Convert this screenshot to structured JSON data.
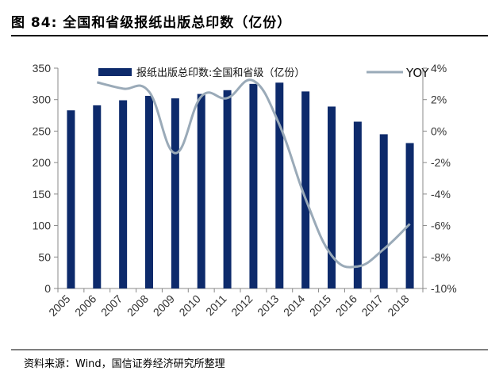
{
  "header": {
    "title": "图 84:  全国和省级报纸出版总印数（亿份）"
  },
  "footer": {
    "source": "资料来源：Wind，国信证券经济研究所整理"
  },
  "chart_data": {
    "type": "bar",
    "categories": [
      "2005",
      "2006",
      "2007",
      "2008",
      "2009",
      "2010",
      "2011",
      "2012",
      "2013",
      "2014",
      "2015",
      "2016",
      "2017",
      "2018"
    ],
    "series": [
      {
        "name": "报纸出版总印数:全国和省级（亿份）",
        "type": "bar",
        "axis": "left",
        "color": "#0d2a6b",
        "values": [
          283,
          291,
          299,
          306,
          302,
          309,
          315,
          325,
          327,
          313,
          289,
          265,
          245,
          231
        ]
      },
      {
        "name": "YOY",
        "type": "line",
        "axis": "right",
        "color": "#9aaab8",
        "values": [
          null,
          3.1,
          2.7,
          2.5,
          -1.4,
          2.2,
          2.1,
          3.2,
          0.4,
          -4.3,
          -7.9,
          -8.6,
          -7.5,
          -5.9
        ]
      }
    ],
    "y_left": {
      "min": 0,
      "max": 350,
      "step": 50,
      "ticks": [
        "0",
        "50",
        "100",
        "150",
        "200",
        "250",
        "300",
        "350"
      ]
    },
    "y_right": {
      "min": -10,
      "max": 4,
      "step": 2,
      "ticks": [
        "-10%",
        "-8%",
        "-6%",
        "-4%",
        "-2%",
        "0%",
        "2%",
        "4%"
      ]
    },
    "grid": false,
    "legend_position": "top"
  }
}
